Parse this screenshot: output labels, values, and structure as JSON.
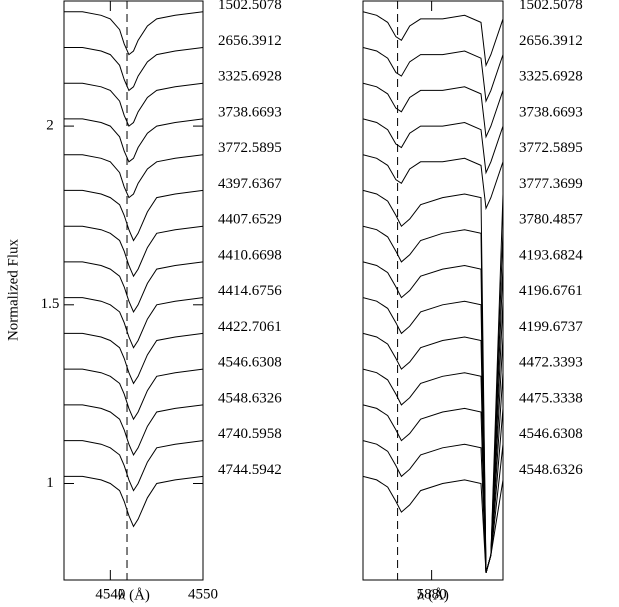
{
  "chart_data": [
    {
      "type": "line",
      "xlabel": "λ (Å)",
      "ylabel": "Normalized Flux",
      "color": "#000",
      "xlim": [
        4535,
        4550
      ],
      "xticks": [
        4540,
        4550
      ],
      "ylim": [
        0.73,
        2.35
      ],
      "yticks": [
        1,
        1.5,
        2
      ],
      "vline": 4541.8,
      "x": [
        4535,
        4537,
        4539,
        4540,
        4541,
        4541.5,
        4542,
        4542.5,
        4543,
        4544,
        4545,
        4547,
        4550
      ],
      "series": [
        {
          "name": "1502.5078",
          "values": [
            2.32,
            2.32,
            2.31,
            2.3,
            2.27,
            2.23,
            2.2,
            2.21,
            2.24,
            2.28,
            2.3,
            2.31,
            2.32
          ]
        },
        {
          "name": "2656.3912",
          "values": [
            2.22,
            2.22,
            2.21,
            2.2,
            2.17,
            2.13,
            2.1,
            2.11,
            2.14,
            2.18,
            2.2,
            2.21,
            2.22
          ]
        },
        {
          "name": "3325.6928",
          "values": [
            2.12,
            2.12,
            2.11,
            2.1,
            2.07,
            2.03,
            2.0,
            2.01,
            2.04,
            2.08,
            2.1,
            2.11,
            2.12
          ]
        },
        {
          "name": "3738.6693",
          "values": [
            2.02,
            2.02,
            2.01,
            2.0,
            1.97,
            1.93,
            1.9,
            1.91,
            1.94,
            1.98,
            2.0,
            2.01,
            2.02
          ]
        },
        {
          "name": "3772.5895",
          "values": [
            1.92,
            1.92,
            1.91,
            1.9,
            1.87,
            1.83,
            1.8,
            1.81,
            1.84,
            1.88,
            1.9,
            1.91,
            1.92
          ]
        },
        {
          "name": "4397.6367",
          "values": [
            1.82,
            1.82,
            1.81,
            1.8,
            1.78,
            1.75,
            1.71,
            1.68,
            1.7,
            1.76,
            1.8,
            1.81,
            1.82
          ]
        },
        {
          "name": "4407.6529",
          "values": [
            1.72,
            1.72,
            1.71,
            1.7,
            1.68,
            1.65,
            1.61,
            1.58,
            1.6,
            1.66,
            1.7,
            1.71,
            1.72
          ]
        },
        {
          "name": "4410.6698",
          "values": [
            1.62,
            1.62,
            1.61,
            1.6,
            1.58,
            1.55,
            1.51,
            1.48,
            1.5,
            1.56,
            1.6,
            1.61,
            1.62
          ]
        },
        {
          "name": "4414.6756",
          "values": [
            1.52,
            1.52,
            1.51,
            1.5,
            1.48,
            1.45,
            1.41,
            1.38,
            1.4,
            1.46,
            1.5,
            1.51,
            1.52
          ]
        },
        {
          "name": "4422.7061",
          "values": [
            1.42,
            1.42,
            1.41,
            1.4,
            1.38,
            1.35,
            1.31,
            1.28,
            1.3,
            1.36,
            1.4,
            1.41,
            1.42
          ]
        },
        {
          "name": "4546.6308",
          "values": [
            1.32,
            1.32,
            1.31,
            1.3,
            1.28,
            1.25,
            1.21,
            1.18,
            1.2,
            1.26,
            1.3,
            1.31,
            1.32
          ]
        },
        {
          "name": "4548.6326",
          "values": [
            1.22,
            1.22,
            1.21,
            1.2,
            1.18,
            1.15,
            1.11,
            1.08,
            1.1,
            1.16,
            1.2,
            1.21,
            1.22
          ]
        },
        {
          "name": "4740.5958",
          "values": [
            1.12,
            1.12,
            1.11,
            1.1,
            1.08,
            1.05,
            1.01,
            0.98,
            1.0,
            1.06,
            1.1,
            1.11,
            1.12
          ]
        },
        {
          "name": "4744.5942",
          "values": [
            1.02,
            1.02,
            1.01,
            1.0,
            0.98,
            0.95,
            0.91,
            0.88,
            0.9,
            0.96,
            1.0,
            1.01,
            1.02
          ]
        }
      ]
    },
    {
      "type": "line",
      "xlabel": "λ (Å)",
      "color": "#000",
      "xlim": [
        5867.5,
        5893
      ],
      "xticks": [
        5880
      ],
      "ylim": [
        0.73,
        2.35
      ],
      "vline": 5873.8,
      "x": [
        5867.5,
        5870,
        5872,
        5873.5,
        5874.5,
        5876,
        5878,
        5882,
        5886,
        5889,
        5889.9,
        5890.8,
        5893
      ],
      "series": [
        {
          "name": "1502.5078",
          "values": [
            2.32,
            2.31,
            2.29,
            2.25,
            2.24,
            2.28,
            2.3,
            2.3,
            2.31,
            2.29,
            2.17,
            2.2,
            2.3
          ]
        },
        {
          "name": "2656.3912",
          "values": [
            2.22,
            2.21,
            2.19,
            2.15,
            2.14,
            2.18,
            2.2,
            2.2,
            2.21,
            2.19,
            2.07,
            2.1,
            2.2
          ]
        },
        {
          "name": "3325.6928",
          "values": [
            2.12,
            2.11,
            2.09,
            2.05,
            2.04,
            2.08,
            2.1,
            2.1,
            2.11,
            2.09,
            1.97,
            2.0,
            2.1
          ]
        },
        {
          "name": "3738.6693",
          "values": [
            2.02,
            2.01,
            1.99,
            1.95,
            1.94,
            1.98,
            2.0,
            2.0,
            2.01,
            1.99,
            1.87,
            1.9,
            2.0
          ]
        },
        {
          "name": "3772.5895",
          "values": [
            1.92,
            1.91,
            1.89,
            1.85,
            1.84,
            1.88,
            1.9,
            1.9,
            1.91,
            1.89,
            1.77,
            1.8,
            1.9
          ]
        },
        {
          "name": "3777.3699",
          "values": [
            1.82,
            1.81,
            1.79,
            1.75,
            1.72,
            1.74,
            1.78,
            1.8,
            1.81,
            1.8,
            0.75,
            0.8,
            1.81
          ]
        },
        {
          "name": "3780.4857",
          "values": [
            1.72,
            1.71,
            1.69,
            1.65,
            1.62,
            1.64,
            1.68,
            1.7,
            1.71,
            1.7,
            0.75,
            0.8,
            1.71
          ]
        },
        {
          "name": "4193.6824",
          "values": [
            1.62,
            1.61,
            1.59,
            1.55,
            1.52,
            1.54,
            1.58,
            1.6,
            1.61,
            1.6,
            0.75,
            0.8,
            1.61
          ]
        },
        {
          "name": "4196.6761",
          "values": [
            1.52,
            1.51,
            1.49,
            1.45,
            1.42,
            1.44,
            1.48,
            1.5,
            1.51,
            1.5,
            0.75,
            0.8,
            1.51
          ]
        },
        {
          "name": "4199.6737",
          "values": [
            1.42,
            1.41,
            1.39,
            1.35,
            1.32,
            1.34,
            1.38,
            1.4,
            1.41,
            1.4,
            0.75,
            0.8,
            1.41
          ]
        },
        {
          "name": "4472.3393",
          "values": [
            1.32,
            1.31,
            1.29,
            1.25,
            1.22,
            1.24,
            1.28,
            1.3,
            1.31,
            1.3,
            0.75,
            0.8,
            1.31
          ]
        },
        {
          "name": "4475.3338",
          "values": [
            1.22,
            1.21,
            1.19,
            1.15,
            1.12,
            1.14,
            1.18,
            1.2,
            1.21,
            1.2,
            0.75,
            0.8,
            1.21
          ]
        },
        {
          "name": "4546.6308",
          "values": [
            1.12,
            1.11,
            1.09,
            1.05,
            1.02,
            1.04,
            1.08,
            1.1,
            1.11,
            1.1,
            0.75,
            0.8,
            1.11
          ]
        },
        {
          "name": "4548.6326",
          "values": [
            1.02,
            1.01,
            0.99,
            0.95,
            0.92,
            0.94,
            0.98,
            1.0,
            1.01,
            1.0,
            0.75,
            0.8,
            1.01
          ]
        }
      ]
    }
  ]
}
